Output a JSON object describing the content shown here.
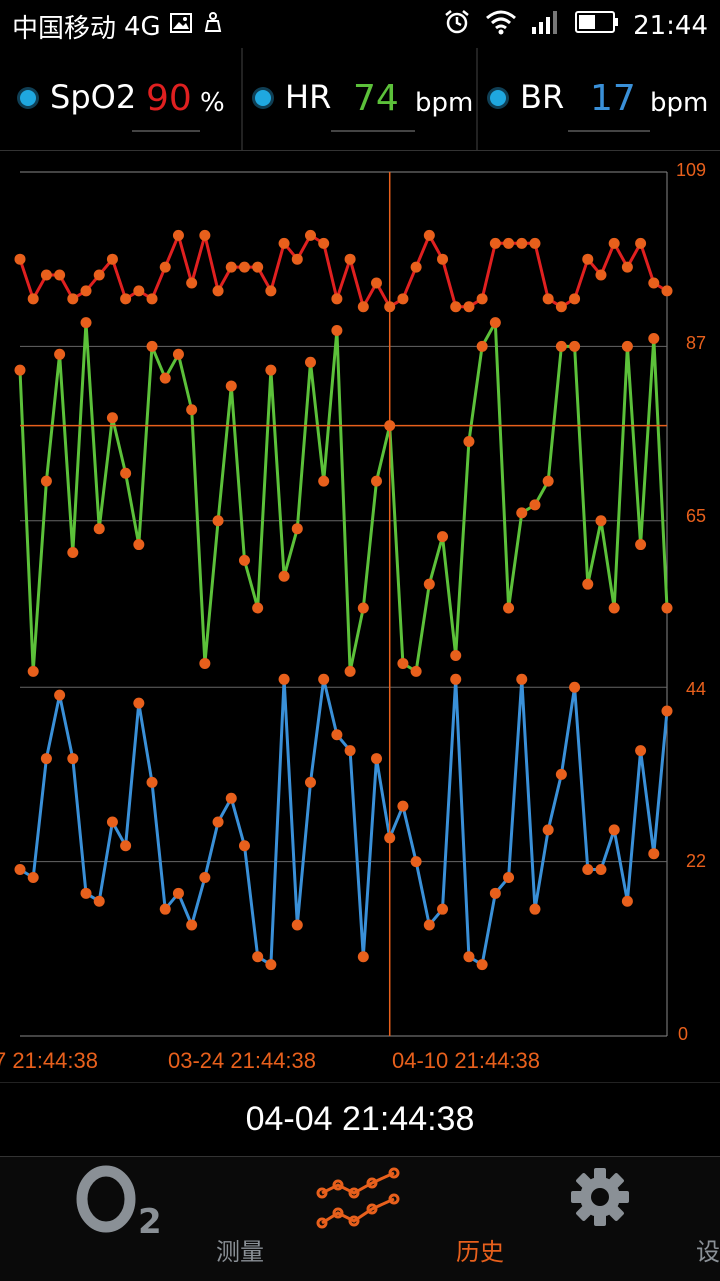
{
  "status_bar": {
    "carrier": "中国移动",
    "network": "4G",
    "time": "21:44"
  },
  "metrics": [
    {
      "name": "SpO2",
      "value": "90",
      "unit": "%",
      "color": "#e02020"
    },
    {
      "name": "HR",
      "value": "74",
      "unit": "bpm",
      "color": "#5cc13a"
    },
    {
      "name": "BR",
      "value": "17",
      "unit": "bpm",
      "color": "#3a90d8"
    }
  ],
  "chart_data": {
    "type": "line",
    "y_ticks": [
      "109",
      "87",
      "65",
      "44",
      "22",
      "0"
    ],
    "ylim": [
      0,
      109
    ],
    "x_tick_labels": [
      "7 21:44:38",
      "03-24 21:44:38",
      "04-10 21:44:38"
    ],
    "grid": true,
    "cursor_index": 28,
    "series": [
      {
        "color": "#e02020",
        "values": [
          98,
          93,
          96,
          96,
          93,
          94,
          96,
          98,
          93,
          94,
          93,
          97,
          101,
          95,
          101,
          94,
          97,
          97,
          97,
          94,
          100,
          98,
          101,
          100,
          93,
          98,
          92,
          95,
          92,
          93,
          97,
          101,
          98,
          92,
          92,
          93,
          100,
          100,
          100,
          100,
          93,
          92,
          93,
          98,
          96,
          100,
          97,
          100,
          95,
          94
        ]
      },
      {
        "color": "#5cc13a",
        "values": [
          84,
          46,
          70,
          86,
          61,
          90,
          64,
          78,
          71,
          62,
          87,
          83,
          86,
          79,
          47,
          65,
          82,
          60,
          54,
          84,
          58,
          64,
          85,
          70,
          89,
          46,
          54,
          70,
          77,
          47,
          46,
          57,
          63,
          48,
          75,
          87,
          90,
          54,
          66,
          67,
          70,
          87,
          87,
          57,
          65,
          54,
          87,
          62,
          88,
          54
        ]
      },
      {
        "color": "#3a90d8",
        "values": [
          21,
          20,
          35,
          43,
          35,
          18,
          17,
          27,
          24,
          42,
          32,
          16,
          18,
          14,
          20,
          27,
          30,
          24,
          10,
          9,
          45,
          14,
          32,
          45,
          38,
          36,
          10,
          35,
          25,
          29,
          22,
          14,
          16,
          45,
          10,
          9,
          18,
          20,
          45,
          16,
          26,
          33,
          44,
          21,
          21,
          26,
          17,
          36,
          23,
          41
        ]
      }
    ]
  },
  "selected_time": "04-04 21:44:38",
  "nav": [
    {
      "label": "测量",
      "icon": "o2-icon",
      "active": false
    },
    {
      "label": "历史",
      "icon": "history-graph-icon",
      "active": true
    },
    {
      "label": "设置",
      "icon": "gear-icon",
      "active": false
    }
  ],
  "colors": {
    "accent": "#e8601c",
    "inactive": "#8a9096"
  }
}
